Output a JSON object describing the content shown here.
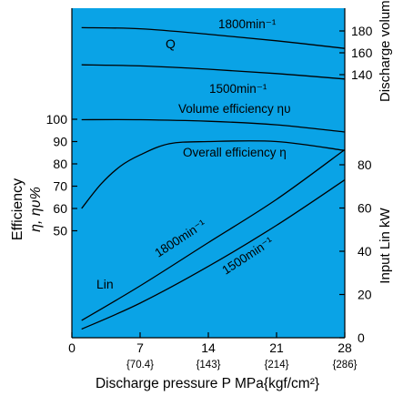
{
  "chart_data": {
    "type": "line",
    "background": "#0aa3e6",
    "x_axis": {
      "label": "Discharge pressure P  MPa{kgf/cm²}",
      "range": [
        0,
        28
      ],
      "ticks": [
        {
          "value": 0,
          "label": "0",
          "sub": ""
        },
        {
          "value": 7,
          "label": "7",
          "sub": "{70.4}"
        },
        {
          "value": 14,
          "label": "14",
          "sub": "{143}"
        },
        {
          "value": 21,
          "label": "21",
          "sub": "{214}"
        },
        {
          "value": 28,
          "label": "28",
          "sub": "{286}"
        }
      ]
    },
    "y_left": {
      "label_line1": "Efficiency",
      "label_line2": "η, ηυ%",
      "ticks": [
        100,
        90,
        80,
        70,
        60,
        50
      ]
    },
    "y_right_input": {
      "label": "Input Lin kW",
      "range": [
        0,
        90
      ],
      "ticks": [
        0,
        20,
        40,
        60,
        80
      ]
    },
    "y_right_discharge": {
      "label": "Discharge volume",
      "ticks": [
        180,
        160,
        140
      ]
    },
    "annotations": {
      "q_1800": "1800min⁻¹",
      "q_label": "Q",
      "q_1500": "1500min⁻¹",
      "volume_eff": "Volume efficiency ηυ",
      "overall_eff": "Overall efficiency η",
      "lin_1800": "1800min⁻¹",
      "lin_1500": "1500min⁻¹",
      "lin_label": "Lin"
    },
    "series": [
      {
        "id": "q-1800",
        "axis": "discharge",
        "x": [
          1,
          7,
          14,
          21,
          28
        ],
        "y": [
          183,
          182,
          177,
          171,
          164
        ]
      },
      {
        "id": "q-1500",
        "axis": "discharge",
        "x": [
          1,
          7,
          14,
          21,
          28
        ],
        "y": [
          149,
          148,
          145,
          141,
          136
        ]
      },
      {
        "id": "volume-efficiency",
        "axis": "efficiency",
        "x": [
          1,
          7,
          14,
          21,
          28
        ],
        "y": [
          99.8,
          99.8,
          99.1,
          97.5,
          94.3
        ]
      },
      {
        "id": "overall-efficiency",
        "axis": "efficiency",
        "x": [
          1,
          3,
          5,
          7,
          10,
          14,
          21,
          28
        ],
        "y": [
          60,
          71,
          79,
          84,
          89,
          90,
          90,
          86
        ]
      },
      {
        "id": "lin-1800",
        "axis": "input",
        "x": [
          1,
          7,
          14,
          21,
          28
        ],
        "y": [
          8,
          24,
          44,
          64,
          87
        ]
      },
      {
        "id": "lin-1500",
        "axis": "input",
        "x": [
          1,
          7,
          14,
          21,
          28
        ],
        "y": [
          4,
          16,
          33,
          52,
          73
        ]
      }
    ]
  }
}
